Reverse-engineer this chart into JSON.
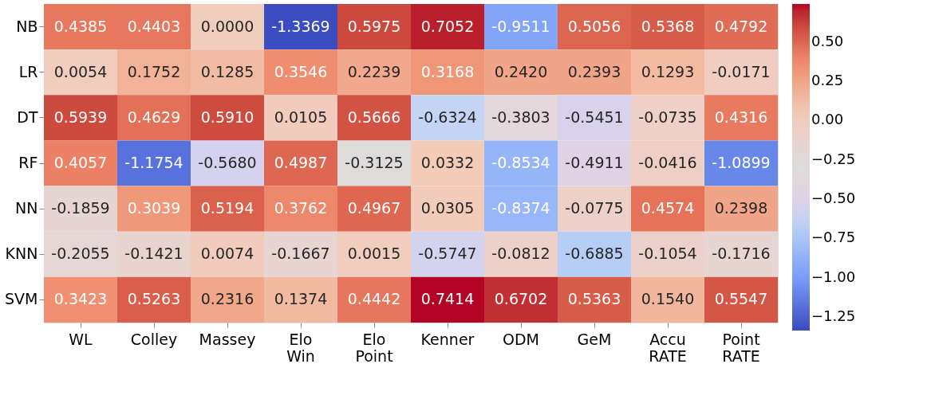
{
  "chart_data": {
    "type": "heatmap",
    "categories": [
      "WL",
      "Colley",
      "Massey",
      "Elo\nWin",
      "Elo\nPoint",
      "Kenner",
      "ODM",
      "GeM",
      "Accu\nRATE",
      "Point\nRATE"
    ],
    "y_categories": [
      "NB",
      "LR",
      "DT",
      "RF",
      "NN",
      "KNN",
      "SVM"
    ],
    "cells": [
      [
        0.4385,
        0.4403,
        0.0,
        -1.3369,
        0.5975,
        0.7052,
        -0.9511,
        0.5056,
        0.5368,
        0.4792
      ],
      [
        0.0054,
        0.1752,
        0.1285,
        0.3546,
        0.2239,
        0.3168,
        0.242,
        0.2393,
        0.1293,
        -0.0171
      ],
      [
        0.5939,
        0.4629,
        0.591,
        0.0105,
        0.5666,
        -0.6324,
        -0.3803,
        -0.5451,
        -0.0735,
        0.4316
      ],
      [
        0.4057,
        -1.1754,
        -0.568,
        0.4987,
        -0.3125,
        0.0332,
        -0.8534,
        -0.4911,
        -0.0416,
        -1.0899
      ],
      [
        -0.1859,
        0.3039,
        0.5194,
        0.3762,
        0.4967,
        0.0305,
        -0.8374,
        -0.0775,
        0.4574,
        0.2398
      ],
      [
        -0.2055,
        -0.1421,
        0.0074,
        -0.1667,
        0.0015,
        -0.5747,
        -0.0812,
        -0.6885,
        -0.1054,
        -0.1716
      ],
      [
        0.3423,
        0.5263,
        0.2316,
        0.1374,
        0.4442,
        0.7414,
        0.6702,
        0.5363,
        0.154,
        0.5547
      ]
    ],
    "cell_labels": [
      [
        "0.4385",
        "0.4403",
        "0.0000",
        "-1.3369",
        "0.5975",
        "0.7052",
        "-0.9511",
        "0.5056",
        "0.5368",
        "0.4792"
      ],
      [
        "0.0054",
        "0.1752",
        "0.1285",
        "0.3546",
        "0.2239",
        "0.3168",
        "0.2420",
        "0.2393",
        "0.1293",
        "-0.0171"
      ],
      [
        "0.5939",
        "0.4629",
        "0.5910",
        "0.0105",
        "0.5666",
        "-0.6324",
        "-0.3803",
        "-0.5451",
        "-0.0735",
        "0.4316"
      ],
      [
        "0.4057",
        "-1.1754",
        "-0.5680",
        "0.4987",
        "-0.3125",
        "0.0332",
        "-0.8534",
        "-0.4911",
        "-0.0416",
        "-1.0899"
      ],
      [
        "-0.1859",
        "0.3039",
        "0.5194",
        "0.3762",
        "0.4967",
        "0.0305",
        "-0.8374",
        "-0.0775",
        "0.4574",
        "0.2398"
      ],
      [
        "-0.2055",
        "-0.1421",
        "0.0074",
        "-0.1667",
        "0.0015",
        "-0.5747",
        "-0.0812",
        "-0.6885",
        "-0.1054",
        "-0.1716"
      ],
      [
        "0.3423",
        "0.5263",
        "0.2316",
        "0.1374",
        "0.4442",
        "0.7414",
        "0.6702",
        "0.5363",
        "0.1540",
        "0.5547"
      ]
    ],
    "clim": [
      -1.3369,
      0.7414
    ],
    "cticks": [
      {
        "value": 0.5,
        "label": "0.50"
      },
      {
        "value": 0.25,
        "label": "0.25"
      },
      {
        "value": 0.0,
        "label": "0.00"
      },
      {
        "value": -0.25,
        "label": "−0.25"
      },
      {
        "value": -0.5,
        "label": "−0.50"
      },
      {
        "value": -0.75,
        "label": "−0.75"
      },
      {
        "value": -1.0,
        "label": "−1.00"
      },
      {
        "value": -1.25,
        "label": "−1.25"
      }
    ]
  }
}
